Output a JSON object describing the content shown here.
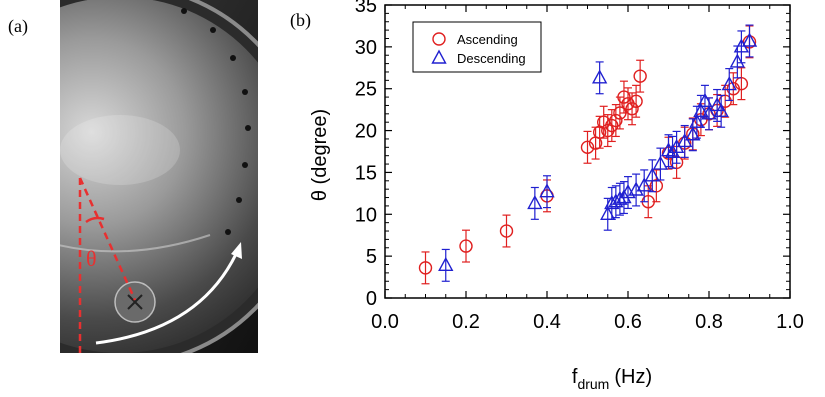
{
  "panel_a": {
    "label": "(a)",
    "angle_symbol": "θ",
    "annotation_color": "#e83030",
    "arrow_color": "#ffffff"
  },
  "panel_b": {
    "label": "(b)"
  },
  "chart_data": {
    "type": "scatter",
    "title": "",
    "xlabel_main": "f",
    "xlabel_sub": "drum",
    "xlabel_unit": "(Hz)",
    "ylabel": "θ (degree)",
    "xlim": [
      0.0,
      1.0
    ],
    "ylim": [
      0,
      35
    ],
    "x_ticks": [
      0.0,
      0.2,
      0.4,
      0.6,
      0.8,
      1.0
    ],
    "x_tick_labels": [
      "0.0",
      "0.2",
      "0.4",
      "0.6",
      "0.8",
      "1.0"
    ],
    "y_ticks": [
      0,
      5,
      10,
      15,
      20,
      25,
      30,
      35
    ],
    "y_tick_labels": [
      "0",
      "5",
      "10",
      "15",
      "20",
      "25",
      "30",
      "35"
    ],
    "grid": false,
    "legend_position": "top-left",
    "series": [
      {
        "name": "Ascending",
        "marker": "circle",
        "color": "#e02020",
        "points": [
          {
            "x": 0.1,
            "y": 3.6,
            "err": 1.9
          },
          {
            "x": 0.2,
            "y": 6.2,
            "err": 1.9
          },
          {
            "x": 0.3,
            "y": 8.0,
            "err": 1.9
          },
          {
            "x": 0.4,
            "y": 12.2,
            "err": 1.9
          },
          {
            "x": 0.5,
            "y": 18.0,
            "err": 1.9
          },
          {
            "x": 0.52,
            "y": 18.5,
            "err": 1.9
          },
          {
            "x": 0.53,
            "y": 19.8,
            "err": 1.9
          },
          {
            "x": 0.54,
            "y": 21.0,
            "err": 1.9
          },
          {
            "x": 0.55,
            "y": 20.0,
            "err": 1.9
          },
          {
            "x": 0.56,
            "y": 20.6,
            "err": 1.9
          },
          {
            "x": 0.57,
            "y": 21.2,
            "err": 1.9
          },
          {
            "x": 0.58,
            "y": 22.1,
            "err": 1.9
          },
          {
            "x": 0.59,
            "y": 24.0,
            "err": 1.9
          },
          {
            "x": 0.6,
            "y": 23.2,
            "err": 1.9
          },
          {
            "x": 0.61,
            "y": 22.6,
            "err": 1.9
          },
          {
            "x": 0.62,
            "y": 23.5,
            "err": 1.9
          },
          {
            "x": 0.63,
            "y": 26.5,
            "err": 1.9
          },
          {
            "x": 0.65,
            "y": 11.5,
            "err": 1.9
          },
          {
            "x": 0.67,
            "y": 13.4,
            "err": 1.9
          },
          {
            "x": 0.7,
            "y": 17.3,
            "err": 1.9
          },
          {
            "x": 0.72,
            "y": 16.2,
            "err": 1.9
          },
          {
            "x": 0.74,
            "y": 18.5,
            "err": 1.9
          },
          {
            "x": 0.76,
            "y": 19.6,
            "err": 1.9
          },
          {
            "x": 0.78,
            "y": 21.3,
            "err": 1.9
          },
          {
            "x": 0.8,
            "y": 22.0,
            "err": 1.9
          },
          {
            "x": 0.82,
            "y": 22.4,
            "err": 1.9
          },
          {
            "x": 0.84,
            "y": 23.5,
            "err": 1.9
          },
          {
            "x": 0.86,
            "y": 25.0,
            "err": 1.9
          },
          {
            "x": 0.88,
            "y": 25.6,
            "err": 1.9
          },
          {
            "x": 0.9,
            "y": 30.6,
            "err": 1.9
          }
        ]
      },
      {
        "name": "Descending",
        "marker": "triangle",
        "color": "#2020d0",
        "points": [
          {
            "x": 0.15,
            "y": 3.9,
            "err": 1.9
          },
          {
            "x": 0.37,
            "y": 11.3,
            "err": 1.9
          },
          {
            "x": 0.4,
            "y": 12.7,
            "err": 1.9
          },
          {
            "x": 0.53,
            "y": 26.3,
            "err": 1.9
          },
          {
            "x": 0.55,
            "y": 10.0,
            "err": 1.9
          },
          {
            "x": 0.56,
            "y": 11.3,
            "err": 1.9
          },
          {
            "x": 0.57,
            "y": 11.5,
            "err": 1.9
          },
          {
            "x": 0.58,
            "y": 11.8,
            "err": 1.9
          },
          {
            "x": 0.59,
            "y": 12.0,
            "err": 1.9
          },
          {
            "x": 0.6,
            "y": 12.6,
            "err": 1.9
          },
          {
            "x": 0.62,
            "y": 12.9,
            "err": 1.9
          },
          {
            "x": 0.64,
            "y": 13.4,
            "err": 1.9
          },
          {
            "x": 0.66,
            "y": 14.6,
            "err": 1.9
          },
          {
            "x": 0.68,
            "y": 16.0,
            "err": 1.9
          },
          {
            "x": 0.7,
            "y": 17.6,
            "err": 1.9
          },
          {
            "x": 0.71,
            "y": 17.4,
            "err": 1.9
          },
          {
            "x": 0.72,
            "y": 18.0,
            "err": 1.9
          },
          {
            "x": 0.74,
            "y": 18.7,
            "err": 1.9
          },
          {
            "x": 0.76,
            "y": 19.5,
            "err": 1.9
          },
          {
            "x": 0.77,
            "y": 21.0,
            "err": 1.9
          },
          {
            "x": 0.78,
            "y": 22.3,
            "err": 1.9
          },
          {
            "x": 0.79,
            "y": 23.5,
            "err": 1.9
          },
          {
            "x": 0.8,
            "y": 22.0,
            "err": 1.9
          },
          {
            "x": 0.82,
            "y": 23.0,
            "err": 1.9
          },
          {
            "x": 0.83,
            "y": 22.3,
            "err": 1.9
          },
          {
            "x": 0.85,
            "y": 25.5,
            "err": 1.9
          },
          {
            "x": 0.87,
            "y": 28.2,
            "err": 1.9
          },
          {
            "x": 0.88,
            "y": 30.0,
            "err": 1.9
          },
          {
            "x": 0.9,
            "y": 30.7,
            "err": 1.9
          }
        ]
      }
    ]
  }
}
